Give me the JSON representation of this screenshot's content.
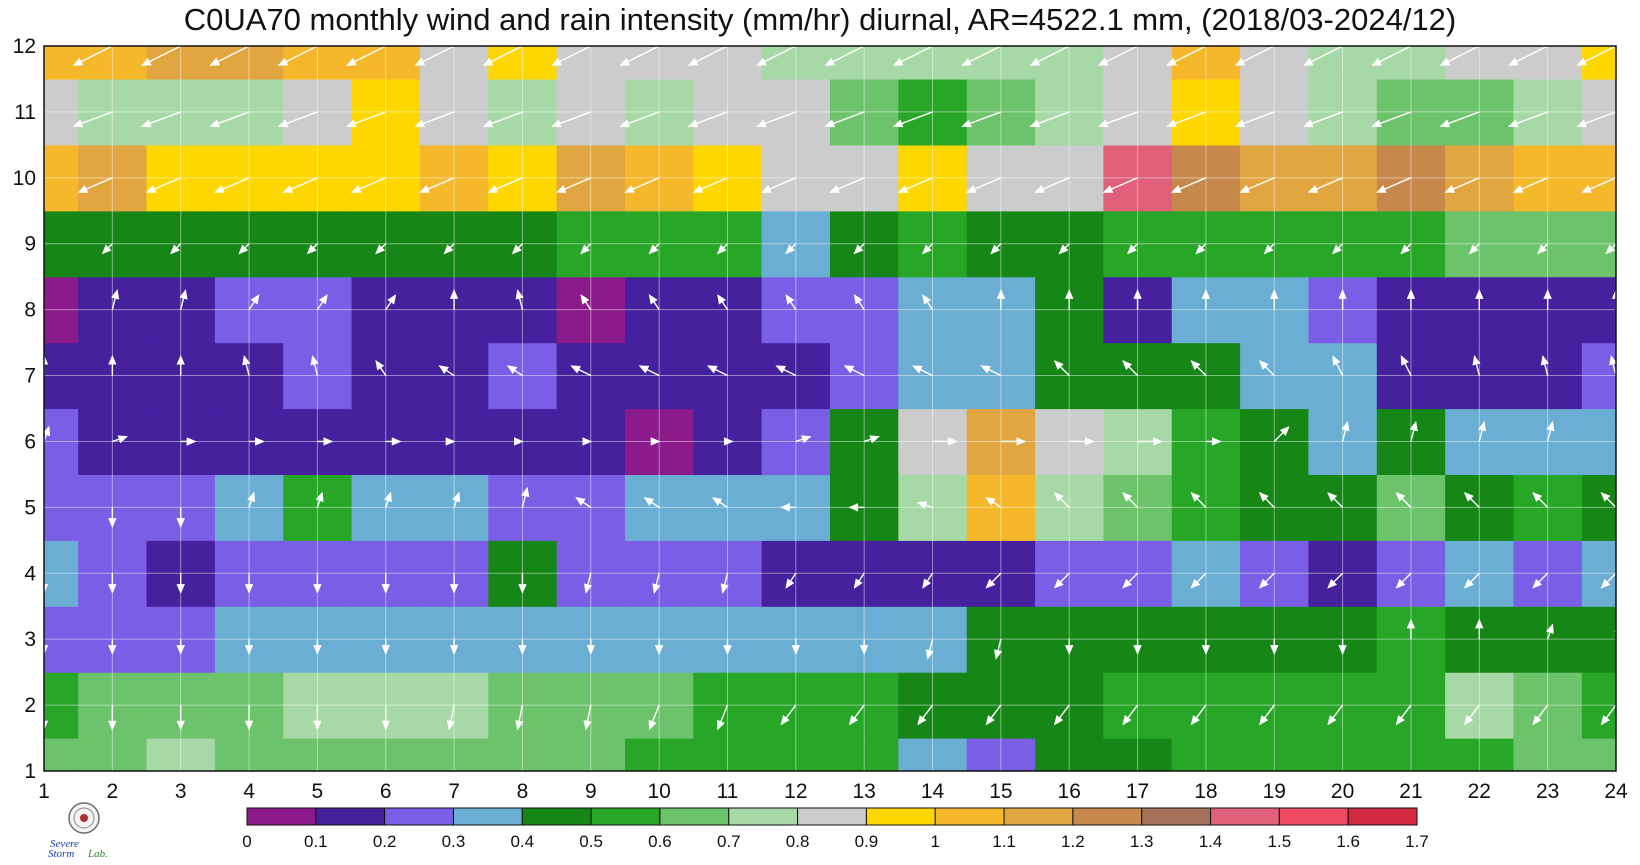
{
  "chart_data": {
    "type": "heatmap",
    "title": "C0UA70 monthly wind and rain intensity (mm/hr) diurnal, AR=4522.1 mm, (2018/03-2024/12)",
    "xlabel": "",
    "ylabel": "",
    "x": [
      1,
      2,
      3,
      4,
      5,
      6,
      7,
      8,
      9,
      10,
      11,
      12,
      13,
      14,
      15,
      16,
      17,
      18,
      19,
      20,
      21,
      22,
      23,
      24
    ],
    "y": [
      1,
      2,
      3,
      4,
      5,
      6,
      7,
      8,
      9,
      10,
      11,
      12
    ],
    "xlim": [
      1,
      24
    ],
    "ylim": [
      1,
      12
    ],
    "x_tick_labels": [
      "1",
      "2",
      "3",
      "4",
      "5",
      "6",
      "7",
      "8",
      "9",
      "10",
      "11",
      "12",
      "13",
      "14",
      "15",
      "16",
      "17",
      "18",
      "19",
      "20",
      "21",
      "22",
      "23",
      "24"
    ],
    "y_tick_labels": [
      "1",
      "2",
      "3",
      "4",
      "5",
      "6",
      "7",
      "8",
      "9",
      "10",
      "11",
      "12"
    ],
    "z": [
      [
        0.6,
        0.65,
        0.7,
        0.6,
        0.6,
        0.6,
        0.6,
        0.6,
        0.6,
        0.55,
        0.55,
        0.5,
        0.5,
        0.35,
        0.25,
        0.45,
        0.45,
        0.5,
        0.55,
        0.55,
        0.5,
        0.55,
        0.6,
        0.6
      ],
      [
        0.55,
        0.65,
        0.65,
        0.65,
        0.7,
        0.7,
        0.75,
        0.65,
        0.6,
        0.6,
        0.5,
        0.55,
        0.55,
        0.4,
        0.4,
        0.45,
        0.5,
        0.55,
        0.55,
        0.55,
        0.55,
        0.7,
        0.6,
        0.55
      ],
      [
        0.25,
        0.25,
        0.25,
        0.3,
        0.3,
        0.3,
        0.3,
        0.3,
        0.3,
        0.3,
        0.3,
        0.35,
        0.35,
        0.35,
        0.4,
        0.4,
        0.45,
        0.45,
        0.45,
        0.45,
        0.5,
        0.45,
        0.45,
        0.45
      ],
      [
        0.3,
        0.25,
        0.15,
        0.25,
        0.25,
        0.25,
        0.25,
        0.45,
        0.25,
        0.25,
        0.25,
        0.15,
        0.15,
        0.15,
        0.15,
        0.25,
        0.25,
        0.35,
        0.25,
        0.15,
        0.25,
        0.35,
        0.25,
        0.3
      ],
      [
        0.25,
        0.25,
        0.25,
        0.35,
        0.55,
        0.35,
        0.3,
        0.25,
        0.25,
        0.35,
        0.35,
        0.35,
        0.45,
        0.7,
        1.05,
        0.75,
        0.65,
        0.55,
        0.45,
        0.45,
        0.65,
        0.45,
        0.55,
        0.45
      ],
      [
        0.25,
        0.15,
        0.15,
        0.15,
        0.15,
        0.15,
        0.15,
        0.15,
        0.15,
        0.05,
        0.15,
        0.25,
        0.45,
        0.85,
        1.1,
        0.85,
        0.75,
        0.55,
        0.4,
        0.35,
        0.45,
        0.35,
        0.35,
        0.3
      ],
      [
        0.15,
        0.15,
        0.15,
        0.15,
        0.25,
        0.15,
        0.15,
        0.25,
        0.15,
        0.15,
        0.15,
        0.15,
        0.25,
        0.3,
        0.35,
        0.45,
        0.45,
        0.4,
        0.3,
        0.3,
        0.15,
        0.15,
        0.15,
        0.25
      ],
      [
        0.05,
        0.15,
        0.15,
        0.25,
        0.25,
        0.15,
        0.15,
        0.15,
        0.05,
        0.15,
        0.15,
        0.25,
        0.25,
        0.3,
        0.35,
        0.45,
        0.15,
        0.3,
        0.3,
        0.25,
        0.15,
        0.15,
        0.15,
        0.15
      ],
      [
        0.45,
        0.45,
        0.4,
        0.45,
        0.45,
        0.45,
        0.45,
        0.45,
        0.5,
        0.55,
        0.5,
        0.35,
        0.45,
        0.5,
        0.45,
        0.4,
        0.5,
        0.55,
        0.55,
        0.55,
        0.55,
        0.6,
        0.6,
        0.6
      ],
      [
        1.05,
        1.1,
        0.95,
        0.95,
        0.9,
        0.95,
        1.0,
        0.95,
        1.1,
        1.0,
        0.9,
        0.85,
        0.8,
        0.95,
        0.8,
        0.85,
        1.45,
        1.2,
        1.1,
        1.1,
        1.2,
        1.1,
        1.0,
        1.0
      ],
      [
        0.85,
        0.75,
        0.7,
        0.75,
        0.85,
        0.9,
        0.85,
        0.75,
        0.85,
        0.75,
        0.85,
        0.85,
        0.65,
        0.55,
        0.65,
        0.75,
        0.85,
        0.95,
        0.85,
        0.75,
        0.65,
        0.65,
        0.75,
        0.85
      ],
      [
        1.0,
        1.05,
        1.15,
        1.1,
        1.0,
        1.05,
        0.85,
        0.95,
        0.85,
        0.85,
        0.85,
        0.75,
        0.75,
        0.75,
        0.75,
        0.75,
        0.85,
        1.0,
        0.85,
        0.75,
        0.75,
        0.8,
        0.85,
        0.9
      ]
    ],
    "colorbar": {
      "levels": [
        "0",
        "0.1",
        "0.2",
        "0.3",
        "0.4",
        "0.5",
        "0.6",
        "0.7",
        "0.8",
        "0.9",
        "1",
        "1.1",
        "1.2",
        "1.3",
        "1.4",
        "1.5",
        "1.6",
        "1.7"
      ],
      "colors": [
        "#8b1a8b",
        "#46219e",
        "#7a5ee6",
        "#6aaed3",
        "#168716",
        "#27a627",
        "#6cc36c",
        "#a7d9a7",
        "#cccccc",
        "#ffd700",
        "#f5b82a",
        "#e2a640",
        "#c6884b",
        "#a47158",
        "#e0607a",
        "#f04a63",
        "#d42a42"
      ]
    },
    "contour_line_color": "#e9a12d",
    "wind_vectors": {
      "color": "#ffffff",
      "note_u": "u/v components in m/s units per grid cell",
      "u": [
        [
          -0.3,
          -0.2,
          -0.2,
          -0.2,
          -0.2,
          -0.2,
          -0.2,
          -0.2,
          -0.2,
          -0.3,
          -0.3,
          -0.3,
          -0.4,
          -0.3,
          -0.2,
          -0.3,
          -0.3,
          -0.3,
          -0.4,
          -0.4,
          -0.4,
          -0.4,
          -0.5,
          -0.5
        ],
        [
          0.0,
          0.0,
          0.0,
          0.0,
          0.0,
          0.0,
          -0.1,
          -0.1,
          -0.1,
          -0.2,
          -0.2,
          -0.3,
          -0.3,
          -0.3,
          -0.3,
          -0.3,
          -0.3,
          -0.3,
          -0.3,
          -0.3,
          -0.3,
          -0.3,
          -0.3,
          -0.3
        ],
        [
          0.0,
          0.0,
          0.0,
          0.0,
          0.0,
          0.0,
          0.0,
          0.0,
          0.0,
          0.0,
          0.0,
          0.0,
          0.0,
          -0.1,
          -0.1,
          0.0,
          0.0,
          0.0,
          0.0,
          0.0,
          0.0,
          0.0,
          0.1,
          0.1
        ],
        [
          0.0,
          0.0,
          0.0,
          0.0,
          0.0,
          0.0,
          0.0,
          0.0,
          -0.1,
          -0.1,
          -0.1,
          -0.2,
          -0.2,
          -0.2,
          -0.3,
          -0.3,
          -0.3,
          -0.3,
          -0.3,
          -0.3,
          -0.3,
          -0.3,
          -0.3,
          -0.3
        ],
        [
          -0.1,
          0.0,
          0.0,
          0.1,
          0.1,
          0.1,
          0.1,
          0.1,
          -0.3,
          -0.3,
          -0.3,
          -0.3,
          -0.3,
          -0.3,
          -0.3,
          -0.3,
          -0.3,
          -0.3,
          -0.3,
          -0.3,
          -0.3,
          -0.3,
          -0.3,
          -0.3
        ],
        [
          0.1,
          0.3,
          0.3,
          0.3,
          0.3,
          0.3,
          0.0,
          0.0,
          0.0,
          0.0,
          0.1,
          0.3,
          0.3,
          0.5,
          0.5,
          0.5,
          0.5,
          0.3,
          0.3,
          0.1,
          0.1,
          0.1,
          0.1,
          0.1
        ],
        [
          0.0,
          0.0,
          0.0,
          -0.1,
          -0.1,
          -0.2,
          -0.3,
          -0.3,
          -0.4,
          -0.4,
          -0.4,
          -0.4,
          -0.4,
          -0.4,
          -0.4,
          -0.3,
          -0.3,
          -0.3,
          -0.3,
          -0.2,
          -0.2,
          -0.1,
          -0.1,
          -0.1
        ],
        [
          -0.1,
          0.1,
          0.1,
          0.2,
          0.2,
          0.2,
          0.0,
          -0.1,
          -0.2,
          -0.2,
          -0.2,
          -0.2,
          -0.2,
          -0.2,
          0.0,
          0.0,
          0.0,
          0.0,
          0.0,
          0.0,
          0.0,
          0.0,
          0.0,
          0.0
        ],
        [
          -0.2,
          -0.2,
          -0.2,
          -0.2,
          -0.2,
          -0.2,
          -0.2,
          -0.2,
          -0.2,
          -0.2,
          -0.2,
          -0.2,
          -0.2,
          -0.2,
          -0.2,
          -0.2,
          -0.2,
          -0.2,
          -0.2,
          -0.2,
          -0.2,
          -0.2,
          -0.2,
          -0.2
        ],
        [
          -0.7,
          -0.7,
          -0.7,
          -0.7,
          -0.7,
          -0.7,
          -0.7,
          -0.7,
          -0.7,
          -0.7,
          -0.7,
          -0.7,
          -0.7,
          -0.7,
          -0.7,
          -0.7,
          -0.7,
          -0.7,
          -0.7,
          -0.7,
          -0.7,
          -0.7,
          -0.7,
          -0.7
        ],
        [
          -0.8,
          -0.8,
          -0.8,
          -0.8,
          -0.8,
          -0.8,
          -0.8,
          -0.8,
          -0.8,
          -0.8,
          -0.8,
          -0.8,
          -0.8,
          -0.8,
          -0.8,
          -0.8,
          -0.8,
          -0.8,
          -0.8,
          -0.8,
          -0.8,
          -0.8,
          -0.8,
          -0.8
        ],
        [
          -0.8,
          -0.8,
          -0.8,
          -0.8,
          -0.8,
          -0.8,
          -0.8,
          -0.8,
          -0.8,
          -0.8,
          -0.8,
          -0.8,
          -0.8,
          -0.8,
          -0.8,
          -0.8,
          -0.8,
          -0.8,
          -0.8,
          -0.8,
          -0.8,
          -0.8,
          -0.8,
          -0.8
        ]
      ],
      "v": [
        [
          -0.4,
          -0.4,
          -0.5,
          -0.5,
          -0.5,
          -0.5,
          -0.5,
          -0.5,
          -0.5,
          -0.4,
          -0.4,
          -0.4,
          -0.3,
          -0.3,
          -0.3,
          -0.3,
          -0.3,
          -0.3,
          -0.3,
          -0.3,
          -0.3,
          -0.3,
          -0.3,
          -0.3
        ],
        [
          -0.5,
          -0.5,
          -0.5,
          -0.5,
          -0.5,
          -0.5,
          -0.5,
          -0.5,
          -0.5,
          -0.5,
          -0.5,
          -0.4,
          -0.4,
          -0.4,
          -0.4,
          -0.4,
          -0.4,
          -0.4,
          -0.4,
          -0.4,
          -0.4,
          -0.4,
          -0.4,
          -0.4
        ],
        [
          -0.3,
          -0.3,
          -0.3,
          -0.3,
          -0.3,
          -0.3,
          -0.3,
          -0.3,
          -0.3,
          -0.3,
          -0.3,
          -0.3,
          -0.3,
          -0.4,
          -0.4,
          -0.3,
          -0.3,
          -0.3,
          -0.3,
          -0.3,
          0.4,
          0.4,
          0.3,
          0.3
        ],
        [
          -0.4,
          -0.4,
          -0.4,
          -0.4,
          -0.4,
          -0.4,
          -0.4,
          -0.4,
          -0.4,
          -0.4,
          -0.4,
          -0.3,
          -0.3,
          -0.3,
          -0.3,
          -0.3,
          -0.3,
          -0.3,
          -0.3,
          -0.3,
          -0.3,
          -0.3,
          -0.3,
          -0.3
        ],
        [
          -0.4,
          -0.4,
          -0.4,
          0.3,
          0.3,
          0.3,
          0.3,
          0.4,
          0.2,
          0.2,
          0.2,
          0.0,
          0.0,
          0.1,
          0.2,
          0.3,
          0.3,
          0.3,
          0.3,
          0.3,
          0.3,
          0.3,
          0.3,
          0.3
        ],
        [
          0.3,
          0.1,
          0.0,
          0.0,
          0.0,
          0.0,
          0.0,
          0.0,
          0.0,
          0.0,
          0.0,
          0.1,
          0.1,
          0.0,
          0.0,
          0.0,
          0.0,
          0.0,
          0.3,
          0.4,
          0.4,
          0.4,
          0.4,
          0.4
        ],
        [
          0.4,
          0.4,
          0.4,
          0.4,
          0.4,
          0.3,
          0.2,
          0.2,
          0.2,
          0.2,
          0.2,
          0.2,
          0.2,
          0.2,
          0.2,
          0.3,
          0.3,
          0.3,
          0.3,
          0.4,
          0.4,
          0.4,
          0.4,
          0.4
        ],
        [
          0.4,
          0.4,
          0.4,
          0.3,
          0.3,
          0.3,
          0.4,
          0.4,
          0.3,
          0.3,
          0.3,
          0.3,
          0.3,
          0.3,
          0.4,
          0.4,
          0.4,
          0.4,
          0.4,
          0.4,
          0.4,
          0.4,
          0.4,
          0.4
        ],
        [
          -0.2,
          -0.2,
          -0.2,
          -0.2,
          -0.2,
          -0.2,
          -0.2,
          -0.2,
          -0.2,
          -0.2,
          -0.2,
          -0.2,
          -0.2,
          -0.2,
          -0.2,
          -0.2,
          -0.2,
          -0.2,
          -0.2,
          -0.2,
          -0.2,
          -0.2,
          -0.2,
          -0.2
        ],
        [
          -0.3,
          -0.3,
          -0.3,
          -0.3,
          -0.3,
          -0.3,
          -0.3,
          -0.3,
          -0.3,
          -0.3,
          -0.3,
          -0.3,
          -0.3,
          -0.3,
          -0.3,
          -0.3,
          -0.3,
          -0.3,
          -0.3,
          -0.3,
          -0.3,
          -0.3,
          -0.3,
          -0.3
        ],
        [
          -0.3,
          -0.3,
          -0.3,
          -0.3,
          -0.3,
          -0.3,
          -0.3,
          -0.3,
          -0.3,
          -0.3,
          -0.3,
          -0.3,
          -0.3,
          -0.3,
          -0.3,
          -0.3,
          -0.3,
          -0.3,
          -0.3,
          -0.3,
          -0.3,
          -0.3,
          -0.3,
          -0.3
        ],
        [
          -0.4,
          -0.4,
          -0.4,
          -0.4,
          -0.4,
          -0.4,
          -0.4,
          -0.4,
          -0.4,
          -0.4,
          -0.4,
          -0.4,
          -0.4,
          -0.4,
          -0.4,
          -0.4,
          -0.4,
          -0.4,
          -0.4,
          -0.4,
          -0.4,
          -0.4,
          -0.4,
          -0.4
        ]
      ]
    },
    "grid": true
  },
  "logo": {
    "text": "Severe Storm Lab."
  }
}
